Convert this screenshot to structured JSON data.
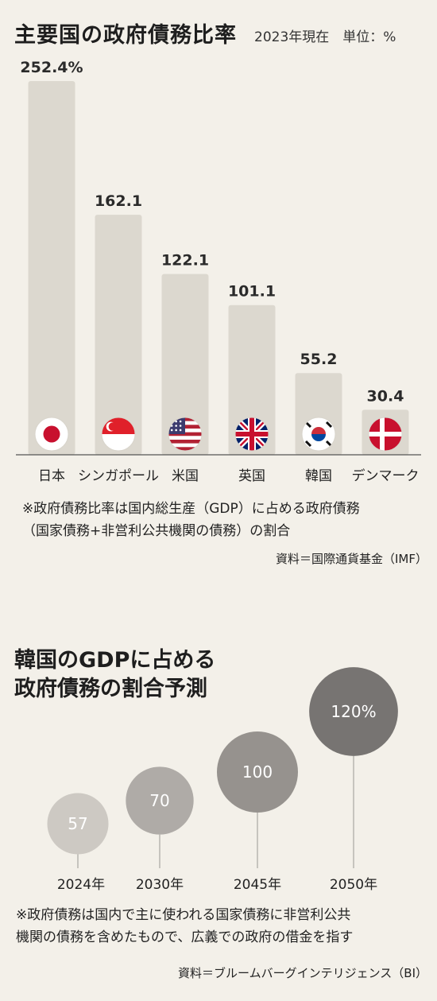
{
  "chart1": {
    "title": "主要国の政府債務比率",
    "unit_label": "2023年現在　単位：%",
    "note_line1": "※政府債務比率は国内総生産（GDP）に占める政府債務",
    "note_line2": "（国家債務+非営利公共機関の債務）の割合",
    "source": "資料＝国際通貨基金（IMF）"
  },
  "chart2": {
    "title_line1": "韓国のGDPに占める",
    "title_line2": "政府債務の割合予測",
    "note_line1": "※政府債務は国内で主に使われる国家債務に非営利公共",
    "note_line2": "機関の債務を含めたもので、広義での政府の借金を指す",
    "source": "資料＝ブルームバーグインテリジェンス（BI）"
  },
  "chart_data": [
    {
      "type": "bar",
      "title": "主要国の政府債務比率",
      "subtitle": "2023年現在　単位：%",
      "categories": [
        "日本",
        "シンガポール",
        "米国",
        "英国",
        "韓国",
        "デンマーク"
      ],
      "values": [
        252.4,
        162.1,
        122.1,
        101.1,
        55.2,
        30.4
      ],
      "labels": [
        "252.4%",
        "162.1",
        "122.1",
        "101.1",
        "55.2",
        "30.4"
      ],
      "flags": [
        "japan-flag-icon",
        "singapore-flag-icon",
        "usa-flag-icon",
        "uk-flag-icon",
        "korea-flag-icon",
        "denmark-flag-icon"
      ],
      "ylim": [
        0,
        252.4
      ],
      "grid": false,
      "bar_color": "#dcd8cf"
    },
    {
      "type": "scatter",
      "title": "韓国のGDPに占める政府債務の割合予測",
      "categories": [
        "2024年",
        "2030年",
        "2045年",
        "2050年"
      ],
      "values": [
        57,
        70,
        100,
        120
      ],
      "labels": [
        "57",
        "70",
        "100",
        "120%"
      ],
      "colors": [
        "#c9c6c0",
        "#a9a6a1",
        "#8e8b87",
        "#6d6b68"
      ]
    }
  ]
}
